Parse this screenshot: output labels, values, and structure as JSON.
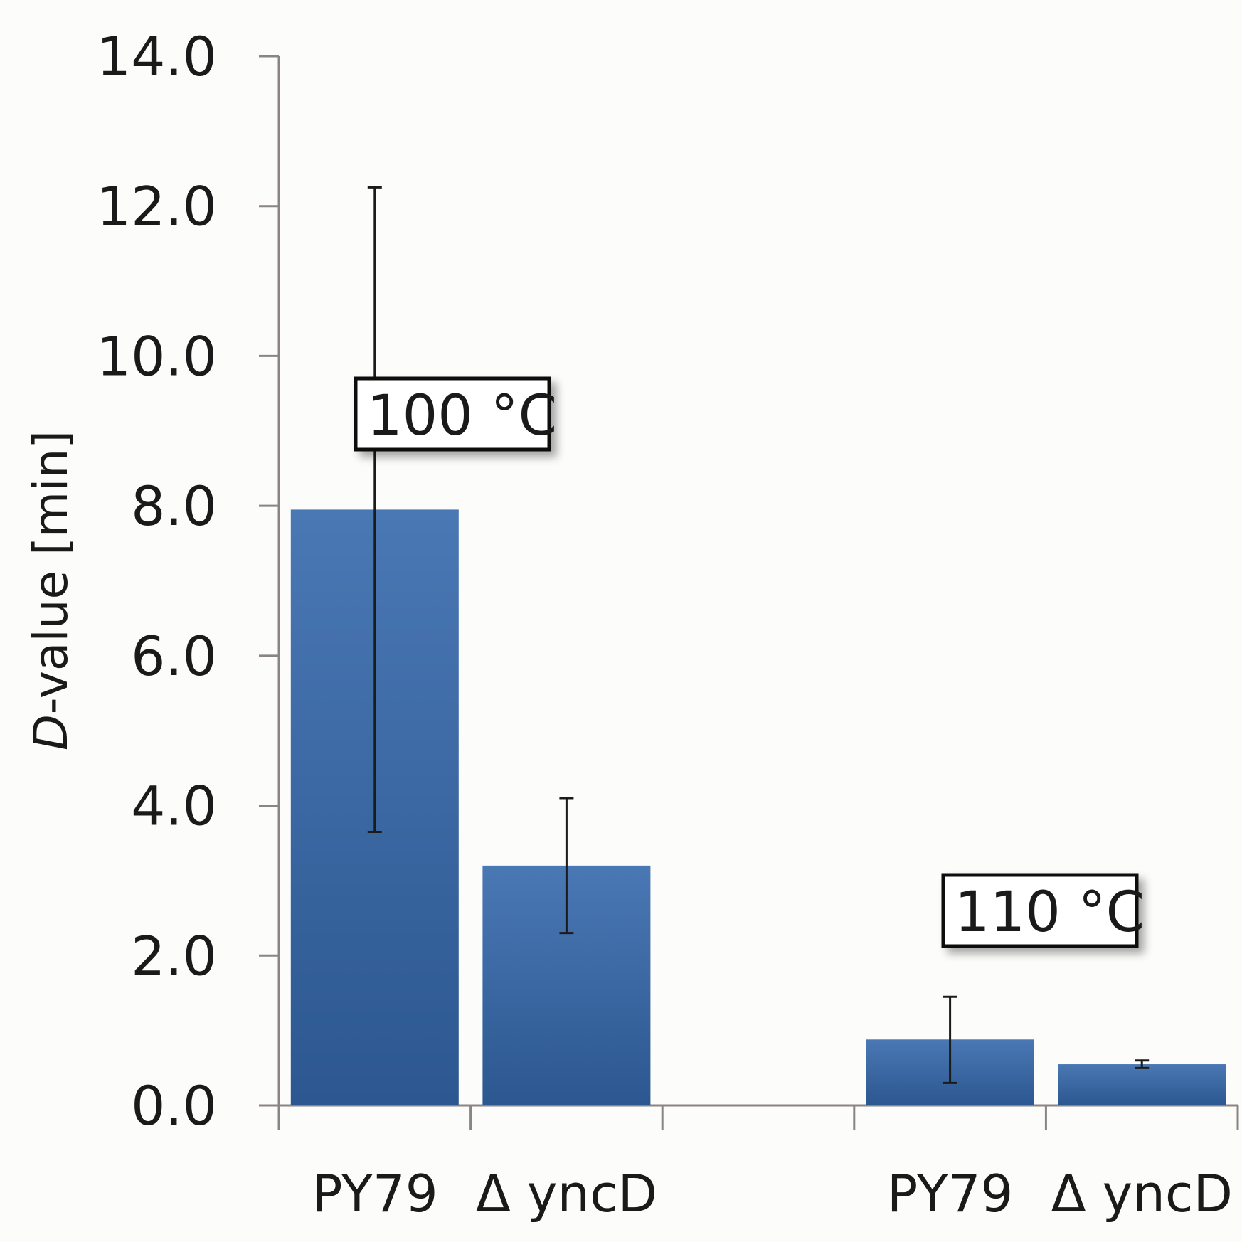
{
  "chart_data": {
    "type": "bar",
    "ylabel_italic": "D",
    "ylabel_rest": "-value [min]",
    "ylim": [
      0,
      14
    ],
    "yticks": [
      "0.0",
      "2.0",
      "4.0",
      "6.0",
      "8.0",
      "10.0",
      "12.0",
      "14.0"
    ],
    "grid": false,
    "bar_color": "#3a68a4",
    "bars": [
      {
        "label": "PY79",
        "group": "100 °C",
        "value": 7.95,
        "err_low": 3.65,
        "err_high": 12.25
      },
      {
        "label": "Δ yncD",
        "group": "100 °C",
        "value": 3.2,
        "err_low": 2.3,
        "err_high": 4.1
      },
      {
        "label": "",
        "group": "",
        "value": null,
        "err_low": null,
        "err_high": null
      },
      {
        "label": "PY79",
        "group": "110 °C",
        "value": 0.88,
        "err_low": 0.3,
        "err_high": 1.45
      },
      {
        "label": "Δ yncD",
        "group": "110 °C",
        "value": 0.55,
        "err_low": 0.5,
        "err_high": 0.6
      }
    ],
    "annotations": [
      "100 °C",
      "110 °C"
    ]
  }
}
